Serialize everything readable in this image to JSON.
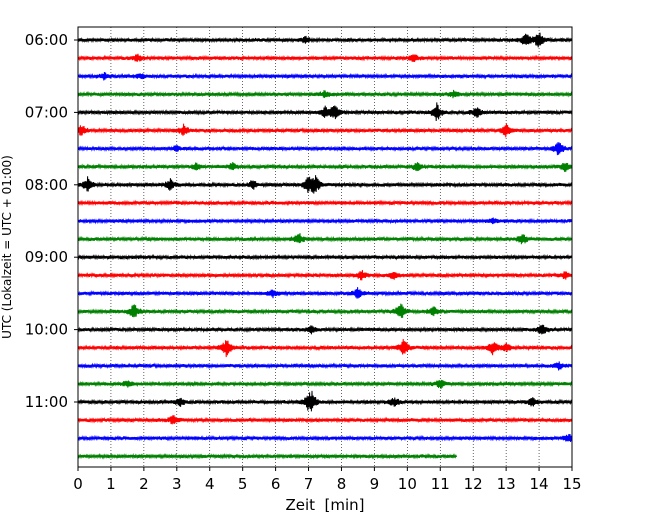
{
  "chart_data": {
    "type": "line",
    "title": "",
    "xlabel": "Zeit  [min]",
    "ylabel": "UTC (Lokalzeit = UTC + 01:00)",
    "xlim": [
      0,
      15
    ],
    "x_ticks": [
      "0",
      "1",
      "2",
      "3",
      "4",
      "5",
      "6",
      "7",
      "8",
      "9",
      "10",
      "11",
      "12",
      "13",
      "14",
      "15"
    ],
    "y_tick_labels": [
      "06:00",
      "07:00",
      "08:00",
      "09:00",
      "10:00",
      "11:00"
    ],
    "grid": "vertical dotted",
    "series_colors": [
      "#000000",
      "#ff0000",
      "#0000ff",
      "#008000"
    ],
    "traces": [
      {
        "start": "06:00",
        "color": "#000000",
        "end_min": 15,
        "events": [
          [
            6.9,
            0.4
          ],
          [
            13.6,
            0.9
          ],
          [
            14.0,
            1.0
          ]
        ]
      },
      {
        "start": "06:15",
        "color": "#ff0000",
        "end_min": 15,
        "events": [
          [
            1.8,
            0.4
          ],
          [
            10.2,
            0.4
          ]
        ]
      },
      {
        "start": "06:30",
        "color": "#0000ff",
        "end_min": 15,
        "events": [
          [
            0.8,
            0.35
          ],
          [
            1.9,
            0.3
          ]
        ]
      },
      {
        "start": "06:45",
        "color": "#008000",
        "end_min": 15,
        "events": [
          [
            7.5,
            0.35
          ],
          [
            11.4,
            0.35
          ]
        ]
      },
      {
        "start": "07:00",
        "color": "#000000",
        "end_min": 15,
        "events": [
          [
            7.5,
            0.6
          ],
          [
            7.8,
            0.8
          ],
          [
            10.9,
            1.0
          ],
          [
            12.1,
            0.6
          ]
        ]
      },
      {
        "start": "07:15",
        "color": "#ff0000",
        "end_min": 15,
        "events": [
          [
            0.1,
            0.6
          ],
          [
            3.2,
            0.6
          ],
          [
            13.0,
            0.7
          ]
        ]
      },
      {
        "start": "07:30",
        "color": "#0000ff",
        "end_min": 15,
        "events": [
          [
            3.0,
            0.3
          ],
          [
            14.6,
            0.9
          ]
        ]
      },
      {
        "start": "07:45",
        "color": "#008000",
        "end_min": 15,
        "events": [
          [
            3.6,
            0.4
          ],
          [
            4.7,
            0.4
          ],
          [
            10.3,
            0.5
          ],
          [
            14.8,
            0.6
          ]
        ]
      },
      {
        "start": "08:00",
        "color": "#000000",
        "end_min": 15,
        "events": [
          [
            0.3,
            0.9
          ],
          [
            2.8,
            0.6
          ],
          [
            5.3,
            0.5
          ],
          [
            7.0,
            0.8
          ],
          [
            7.2,
            1.0
          ]
        ]
      },
      {
        "start": "08:15",
        "color": "#ff0000",
        "end_min": 15,
        "events": []
      },
      {
        "start": "08:30",
        "color": "#0000ff",
        "end_min": 15,
        "events": [
          [
            12.6,
            0.3
          ]
        ]
      },
      {
        "start": "08:45",
        "color": "#008000",
        "end_min": 15,
        "events": [
          [
            6.7,
            0.7
          ],
          [
            13.5,
            0.6
          ]
        ]
      },
      {
        "start": "09:00",
        "color": "#000000",
        "end_min": 15,
        "events": []
      },
      {
        "start": "09:15",
        "color": "#ff0000",
        "end_min": 15,
        "events": [
          [
            8.6,
            0.6
          ],
          [
            9.6,
            0.4
          ],
          [
            14.8,
            0.4
          ]
        ]
      },
      {
        "start": "09:30",
        "color": "#0000ff",
        "end_min": 15,
        "events": [
          [
            5.9,
            0.5
          ],
          [
            8.5,
            0.6
          ]
        ]
      },
      {
        "start": "09:45",
        "color": "#008000",
        "end_min": 15,
        "events": [
          [
            1.7,
            0.9
          ],
          [
            9.8,
            1.0
          ],
          [
            10.8,
            0.5
          ]
        ]
      },
      {
        "start": "10:00",
        "color": "#000000",
        "end_min": 15,
        "events": [
          [
            7.1,
            0.4
          ],
          [
            14.1,
            0.7
          ]
        ]
      },
      {
        "start": "10:15",
        "color": "#ff0000",
        "end_min": 15,
        "events": [
          [
            4.5,
            1.0
          ],
          [
            9.9,
            1.0
          ],
          [
            12.6,
            0.8
          ],
          [
            13.0,
            0.5
          ]
        ]
      },
      {
        "start": "10:30",
        "color": "#0000ff",
        "end_min": 15,
        "events": [
          [
            14.6,
            0.4
          ]
        ]
      },
      {
        "start": "10:45",
        "color": "#008000",
        "end_min": 15,
        "events": [
          [
            1.5,
            0.3
          ],
          [
            11.0,
            0.5
          ]
        ]
      },
      {
        "start": "11:00",
        "color": "#000000",
        "end_min": 15,
        "events": [
          [
            3.1,
            0.5
          ],
          [
            7.0,
            0.7
          ],
          [
            7.1,
            0.9
          ],
          [
            9.6,
            0.5
          ],
          [
            13.8,
            0.5
          ]
        ]
      },
      {
        "start": "11:15",
        "color": "#ff0000",
        "end_min": 15,
        "events": [
          [
            2.9,
            0.5
          ]
        ]
      },
      {
        "start": "11:30",
        "color": "#0000ff",
        "end_min": 15,
        "events": [
          [
            14.9,
            0.5
          ]
        ]
      },
      {
        "start": "11:45",
        "color": "#008000",
        "end_min": 11.5,
        "events": []
      }
    ]
  }
}
